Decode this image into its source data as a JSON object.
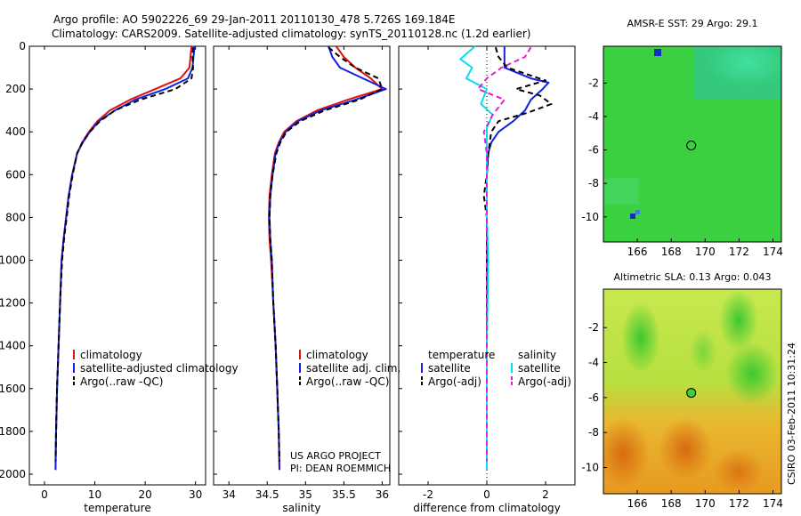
{
  "header": {
    "title_line1": "Argo profile: AO 5902226_69 29-Jan-2011 20110130_478 5.726S 169.184E",
    "title_line2": "Climatology: CARS2009. Satellite-adjusted climatology: synTS_20110128.nc (1.2d earlier)"
  },
  "footer": {
    "credit_line1": "US ARGO PROJECT",
    "credit_line2": "PI: DEAN ROEMMICH",
    "timestamp": "CSIRO 03-Feb-2011 10:31:24"
  },
  "chart_data": [
    {
      "id": "temperature",
      "type": "line",
      "xlabel": "temperature",
      "xlim": [
        -3,
        32
      ],
      "ylim": [
        2050,
        0
      ],
      "xticks": [
        0,
        10,
        20,
        30
      ],
      "yticks": [
        0,
        200,
        400,
        600,
        800,
        1000,
        1200,
        1400,
        1600,
        1800,
        2000
      ],
      "legend": [
        "climatology",
        "satellite-adjusted climatology",
        "Argo(..raw -QC)"
      ],
      "series": [
        {
          "name": "climatology",
          "color": "#e01010",
          "dash": "",
          "points": [
            [
              29.2,
              0
            ],
            [
              29.0,
              50
            ],
            [
              28.8,
              100
            ],
            [
              27,
              150
            ],
            [
              22,
              200
            ],
            [
              17,
              250
            ],
            [
              13,
              300
            ],
            [
              10.5,
              350
            ],
            [
              8.8,
              400
            ],
            [
              7.5,
              450
            ],
            [
              6.5,
              500
            ],
            [
              5.5,
              600
            ],
            [
              4.8,
              700
            ],
            [
              4.3,
              800
            ],
            [
              3.8,
              900
            ],
            [
              3.4,
              1000
            ],
            [
              3.1,
              1200
            ],
            [
              2.8,
              1400
            ],
            [
              2.5,
              1600
            ],
            [
              2.3,
              1800
            ],
            [
              2.2,
              1980
            ]
          ]
        },
        {
          "name": "satellite-adjusted climatology",
          "color": "#1020e0",
          "dash": "",
          "points": [
            [
              29.8,
              0
            ],
            [
              29.6,
              50
            ],
            [
              29.4,
              100
            ],
            [
              28.5,
              150
            ],
            [
              24,
              200
            ],
            [
              18,
              250
            ],
            [
              14,
              300
            ],
            [
              10.8,
              350
            ],
            [
              9,
              400
            ],
            [
              7.6,
              450
            ],
            [
              6.5,
              500
            ],
            [
              5.5,
              600
            ],
            [
              4.8,
              700
            ],
            [
              4.3,
              800
            ],
            [
              3.8,
              900
            ],
            [
              3.4,
              1000
            ],
            [
              3.1,
              1200
            ],
            [
              2.8,
              1400
            ],
            [
              2.5,
              1600
            ],
            [
              2.3,
              1800
            ],
            [
              2.2,
              1980
            ]
          ]
        },
        {
          "name": "Argo(..raw -QC)",
          "color": "#000000",
          "dash": "6,4",
          "points": [
            [
              29.5,
              5
            ],
            [
              29.4,
              50
            ],
            [
              29.5,
              100
            ],
            [
              29.2,
              150
            ],
            [
              26,
              200
            ],
            [
              19,
              250
            ],
            [
              14,
              300
            ],
            [
              11,
              350
            ],
            [
              9,
              400
            ],
            [
              7.5,
              450
            ],
            [
              6.5,
              500
            ],
            [
              5.6,
              600
            ],
            [
              4.9,
              700
            ],
            [
              4.4,
              800
            ],
            [
              3.9,
              900
            ],
            [
              3.5,
              1000
            ],
            [
              3.1,
              1200
            ],
            [
              2.8,
              1400
            ],
            [
              2.5,
              1600
            ],
            [
              2.3,
              1800
            ],
            [
              2.2,
              1940
            ]
          ]
        }
      ]
    },
    {
      "id": "salinity",
      "type": "line",
      "xlabel": "salinity",
      "xlim": [
        33.8,
        36.1
      ],
      "ylim": [
        2050,
        0
      ],
      "xticks": [
        34,
        34.5,
        35,
        35.5,
        36
      ],
      "legend": [
        "climatology",
        "satellite adj. clim.",
        "Argo(..raw -QC)"
      ],
      "series": [
        {
          "name": "climatology",
          "color": "#e01010",
          "dash": "",
          "points": [
            [
              35.4,
              0
            ],
            [
              35.5,
              50
            ],
            [
              35.65,
              100
            ],
            [
              35.85,
              150
            ],
            [
              36.0,
              200
            ],
            [
              35.55,
              250
            ],
            [
              35.15,
              300
            ],
            [
              34.88,
              350
            ],
            [
              34.72,
              400
            ],
            [
              34.65,
              450
            ],
            [
              34.6,
              500
            ],
            [
              34.56,
              600
            ],
            [
              34.53,
              700
            ],
            [
              34.52,
              800
            ],
            [
              34.53,
              900
            ],
            [
              34.55,
              1000
            ],
            [
              34.58,
              1200
            ],
            [
              34.61,
              1400
            ],
            [
              34.63,
              1600
            ],
            [
              34.65,
              1800
            ],
            [
              34.66,
              1980
            ]
          ]
        },
        {
          "name": "satellite adj. clim.",
          "color": "#1020e0",
          "dash": "",
          "points": [
            [
              35.3,
              0
            ],
            [
              35.35,
              50
            ],
            [
              35.45,
              100
            ],
            [
              35.75,
              150
            ],
            [
              36.05,
              200
            ],
            [
              35.65,
              250
            ],
            [
              35.2,
              300
            ],
            [
              34.9,
              350
            ],
            [
              34.74,
              400
            ],
            [
              34.66,
              450
            ],
            [
              34.61,
              500
            ],
            [
              34.57,
              600
            ],
            [
              34.54,
              700
            ],
            [
              34.53,
              800
            ],
            [
              34.54,
              900
            ],
            [
              34.56,
              1000
            ],
            [
              34.58,
              1200
            ],
            [
              34.61,
              1400
            ],
            [
              34.63,
              1600
            ],
            [
              34.65,
              1800
            ],
            [
              34.66,
              1980
            ]
          ]
        },
        {
          "name": "Argo(..raw -QC)",
          "color": "#000000",
          "dash": "6,4",
          "points": [
            [
              35.3,
              5
            ],
            [
              35.45,
              50
            ],
            [
              35.65,
              100
            ],
            [
              35.95,
              150
            ],
            [
              36.0,
              200
            ],
            [
              35.7,
              250
            ],
            [
              35.25,
              300
            ],
            [
              34.93,
              350
            ],
            [
              34.75,
              400
            ],
            [
              34.67,
              450
            ],
            [
              34.62,
              500
            ],
            [
              34.57,
              600
            ],
            [
              34.54,
              700
            ],
            [
              34.53,
              800
            ],
            [
              34.54,
              900
            ],
            [
              34.56,
              1000
            ],
            [
              34.58,
              1200
            ],
            [
              34.61,
              1400
            ],
            [
              34.63,
              1600
            ],
            [
              34.65,
              1800
            ],
            [
              34.66,
              1940
            ]
          ]
        }
      ]
    },
    {
      "id": "difference",
      "type": "line",
      "xlabel": "difference from climatology",
      "xlim": [
        -3,
        3
      ],
      "ylim": [
        2050,
        0
      ],
      "xticks": [
        -2,
        0,
        2
      ],
      "legend_temperature": {
        "title": "temperature",
        "entries": [
          "satellite",
          "Argo(-adj)"
        ]
      },
      "legend_salinity": {
        "title": "salinity",
        "entries": [
          "satellite",
          "Argo(-adj)"
        ]
      },
      "series": [
        {
          "name": "temperature satellite",
          "color": "#1020e0",
          "dash": "",
          "points": [
            [
              0.6,
              0
            ],
            [
              0.6,
              50
            ],
            [
              0.6,
              100
            ],
            [
              1.5,
              150
            ],
            [
              2.1,
              170
            ],
            [
              1.9,
              200
            ],
            [
              1.5,
              250
            ],
            [
              1.3,
              300
            ],
            [
              0.9,
              350
            ],
            [
              0.4,
              400
            ],
            [
              0.15,
              450
            ],
            [
              0.05,
              500
            ],
            [
              0.0,
              600
            ],
            [
              0.0,
              800
            ],
            [
              0.0,
              1000
            ],
            [
              0.0,
              1400
            ],
            [
              0.0,
              1980
            ]
          ]
        },
        {
          "name": "temperature Argo(-adj)",
          "color": "#000000",
          "dash": "6,4",
          "points": [
            [
              0.3,
              5
            ],
            [
              0.4,
              50
            ],
            [
              0.7,
              100
            ],
            [
              2.0,
              160
            ],
            [
              1.0,
              200
            ],
            [
              1.8,
              230
            ],
            [
              2.2,
              270
            ],
            [
              1.4,
              310
            ],
            [
              0.4,
              350
            ],
            [
              0.15,
              400
            ],
            [
              0.1,
              450
            ],
            [
              0.05,
              500
            ],
            [
              0.0,
              600
            ],
            [
              -0.1,
              700
            ],
            [
              0.0,
              800
            ],
            [
              0.0,
              1000
            ],
            [
              0.0,
              1400
            ],
            [
              0.0,
              1940
            ]
          ]
        },
        {
          "name": "salinity satellite",
          "color": "#00e0f0",
          "dash": "",
          "points": [
            [
              -0.4,
              0
            ],
            [
              -0.9,
              60
            ],
            [
              -0.5,
              100
            ],
            [
              -0.7,
              150
            ],
            [
              0.0,
              200
            ],
            [
              -0.2,
              270
            ],
            [
              0.2,
              320
            ],
            [
              0.0,
              380
            ],
            [
              0.0,
              500
            ],
            [
              0.0,
              800
            ],
            [
              0.05,
              1000
            ],
            [
              0.0,
              1400
            ],
            [
              0.0,
              1980
            ]
          ]
        },
        {
          "name": "salinity Argo(-adj)",
          "color": "#e020d0",
          "dash": "6,4",
          "points": [
            [
              1.5,
              5
            ],
            [
              1.3,
              50
            ],
            [
              0.5,
              100
            ],
            [
              0.0,
              150
            ],
            [
              -0.3,
              200
            ],
            [
              0.6,
              250
            ],
            [
              0.2,
              320
            ],
            [
              -0.1,
              400
            ],
            [
              0.0,
              500
            ],
            [
              0.0,
              800
            ],
            [
              0.0,
              1000
            ],
            [
              0.0,
              1940
            ]
          ]
        }
      ]
    },
    {
      "id": "sst_map",
      "type": "heatmap",
      "title": "AMSR-E SST: 29 Argo: 29.1",
      "xlim": [
        164,
        174.5
      ],
      "ylim": [
        -11.5,
        0.2
      ],
      "xticks": [
        166,
        168,
        170,
        172,
        174
      ],
      "yticks": [
        -2,
        -4,
        -6,
        -8,
        -10
      ],
      "marker": [
        169.18,
        -5.73
      ]
    },
    {
      "id": "sla_map",
      "type": "heatmap",
      "title": "Altimetric SLA: 0.13 Argo: 0.043",
      "xlim": [
        164,
        174.5
      ],
      "ylim": [
        -11.5,
        0.2
      ],
      "xticks": [
        166,
        168,
        170,
        172,
        174
      ],
      "yticks": [
        -2,
        -4,
        -6,
        -8,
        -10
      ],
      "marker": [
        169.18,
        -5.73
      ]
    }
  ]
}
